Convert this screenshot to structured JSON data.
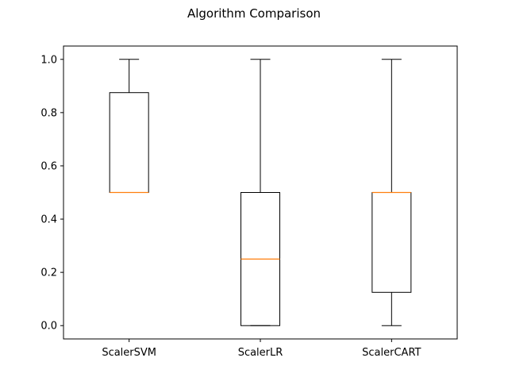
{
  "chart_data": {
    "type": "box",
    "title": "Algorithm Comparison",
    "xlabel": "",
    "ylabel": "",
    "ylim": [
      -0.05,
      1.05
    ],
    "yticks": [
      0.0,
      0.2,
      0.4,
      0.6,
      0.8,
      1.0
    ],
    "ytick_labels": [
      "0.0",
      "0.2",
      "0.4",
      "0.6",
      "0.8",
      "1.0"
    ],
    "categories": [
      "ScalerSVM",
      "ScalerLR",
      "ScalerCART"
    ],
    "boxes": [
      {
        "name": "ScalerSVM",
        "whisker_low": 0.5,
        "q1": 0.5,
        "median": 0.5,
        "q3": 0.875,
        "whisker_high": 1.0
      },
      {
        "name": "ScalerLR",
        "whisker_low": 0.0,
        "q1": 0.0,
        "median": 0.25,
        "q3": 0.5,
        "whisker_high": 1.0
      },
      {
        "name": "ScalerCART",
        "whisker_low": 0.0,
        "q1": 0.125,
        "median": 0.5,
        "q3": 0.5,
        "whisker_high": 1.0
      }
    ],
    "grid": false,
    "colors": {
      "box": "#000000",
      "median": "#ff7f0e"
    }
  }
}
